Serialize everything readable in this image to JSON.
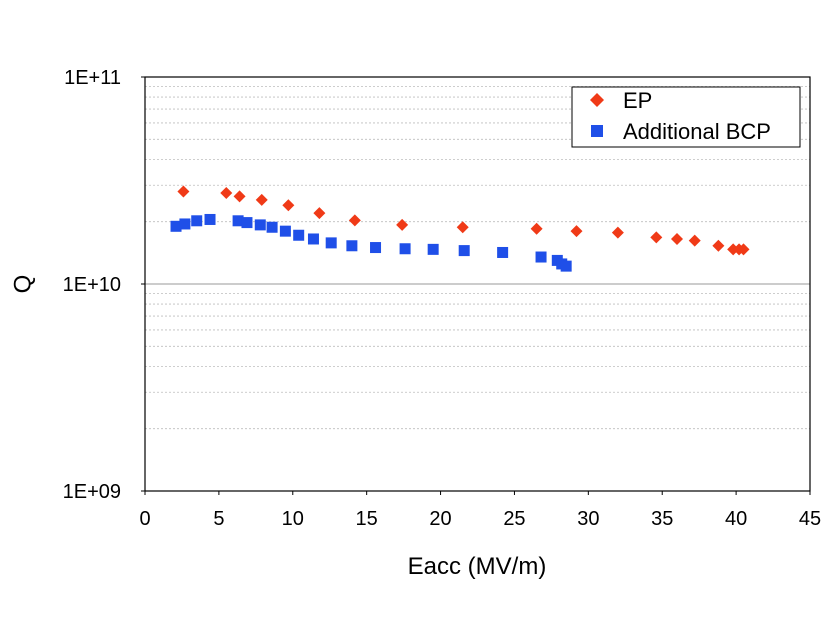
{
  "chart_data": {
    "type": "scatter",
    "title": "",
    "xlabel": "Eacc (MV/m)",
    "ylabel": "Q",
    "xlim": [
      0,
      45
    ],
    "ylim": [
      1000000000.0,
      100000000000.0
    ],
    "yscale": "log",
    "x_ticks": [
      0,
      5,
      10,
      15,
      20,
      25,
      30,
      35,
      40,
      45
    ],
    "x_tick_labels": [
      "0",
      "5",
      "10",
      "15",
      "20",
      "25",
      "30",
      "35",
      "40",
      "45"
    ],
    "y_ticks": [
      1000000000.0,
      10000000000.0,
      100000000000.0
    ],
    "y_tick_labels": [
      "1E+09",
      "1E+10",
      "1E+11"
    ],
    "grid": "minor-dotted",
    "legend_position": "top-right",
    "series": [
      {
        "name": "EP",
        "marker": "diamond",
        "color": "#f03a17",
        "x": [
          2.6,
          5.5,
          6.4,
          7.9,
          9.7,
          11.8,
          14.2,
          17.4,
          21.5,
          26.5,
          29.2,
          32.0,
          34.6,
          36.0,
          37.2,
          38.8,
          39.8,
          40.2,
          40.5
        ],
        "y": [
          28000000000.0,
          27500000000.0,
          26500000000.0,
          25500000000.0,
          24000000000.0,
          22000000000.0,
          20300000000.0,
          19300000000.0,
          18800000000.0,
          18500000000.0,
          18000000000.0,
          17700000000.0,
          16800000000.0,
          16500000000.0,
          16200000000.0,
          15300000000.0,
          14700000000.0,
          14700000000.0,
          14700000000.0
        ]
      },
      {
        "name": "Additional BCP",
        "marker": "square",
        "color": "#1f4fe8",
        "x": [
          2.1,
          2.7,
          3.5,
          4.4,
          6.3,
          6.9,
          7.8,
          8.6,
          9.5,
          10.4,
          11.4,
          12.6,
          14.0,
          15.6,
          17.6,
          19.5,
          21.6,
          24.2,
          26.8,
          27.9,
          28.2,
          28.5
        ],
        "y": [
          19000000000.0,
          19500000000.0,
          20200000000.0,
          20500000000.0,
          20200000000.0,
          19800000000.0,
          19300000000.0,
          18800000000.0,
          18000000000.0,
          17200000000.0,
          16500000000.0,
          15800000000.0,
          15300000000.0,
          15000000000.0,
          14800000000.0,
          14700000000.0,
          14500000000.0,
          14200000000.0,
          13500000000.0,
          13000000000.0,
          12500000000.0,
          12200000000.0
        ]
      }
    ]
  }
}
